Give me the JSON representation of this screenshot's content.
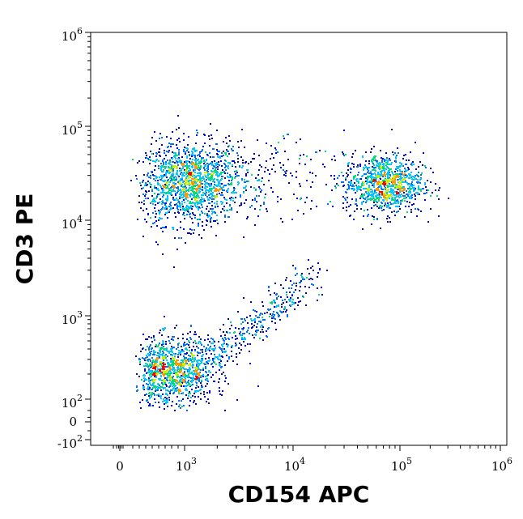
{
  "chart_data": {
    "type": "scatter",
    "title": "",
    "xlabel": "CD154 APC",
    "ylabel": "CD3 PE",
    "scale": "biexponential (logicle)",
    "grid": false,
    "xlim": [
      -100,
      1200000
    ],
    "ylim": [
      -150,
      1200000
    ],
    "x_ticks": [
      {
        "value": 0,
        "base": "0",
        "exp": ""
      },
      {
        "value": 1000,
        "base": "10",
        "exp": "3"
      },
      {
        "value": 10000,
        "base": "10",
        "exp": "4"
      },
      {
        "value": 100000,
        "base": "10",
        "exp": "5"
      },
      {
        "value": 1000000,
        "base": "10",
        "exp": "6"
      }
    ],
    "y_ticks": [
      {
        "value": -100,
        "base": "-10",
        "exp": "2"
      },
      {
        "value": 0,
        "base": "0",
        "exp": ""
      },
      {
        "value": 100,
        "base": "10",
        "exp": "2"
      },
      {
        "value": 1000,
        "base": "10",
        "exp": "3"
      },
      {
        "value": 10000,
        "base": "10",
        "exp": "4"
      },
      {
        "value": 100000,
        "base": "10",
        "exp": "5"
      },
      {
        "value": 1000000,
        "base": "10",
        "exp": "6"
      }
    ],
    "density_colors": [
      "#0000cc",
      "#0070ff",
      "#00c8ff",
      "#00e070",
      "#c8ee00",
      "#ff9900",
      "#ff0000"
    ],
    "populations": [
      {
        "x_center": 1100,
        "y_center": 25000,
        "count": 1400,
        "x_spread_decades": 0.22,
        "y_spread_decades": 0.22
      },
      {
        "x_center": 70000,
        "y_center": 25000,
        "count": 1000,
        "x_spread_decades": 0.19,
        "y_spread_decades": 0.16
      },
      {
        "x_center": 800,
        "y_center": 220,
        "count": 1100,
        "x_spread_decades": 0.18,
        "y_spread_decades": 0.2
      },
      {
        "x_center": 5000,
        "y_center": 30000,
        "count": 220,
        "x_spread_decades": 0.35,
        "y_spread_decades": 0.2
      },
      {
        "x_center": 2500,
        "y_center": 800,
        "count": 380,
        "x_spread_decades": 0.35,
        "y_spread_decades": 0.3
      }
    ]
  }
}
